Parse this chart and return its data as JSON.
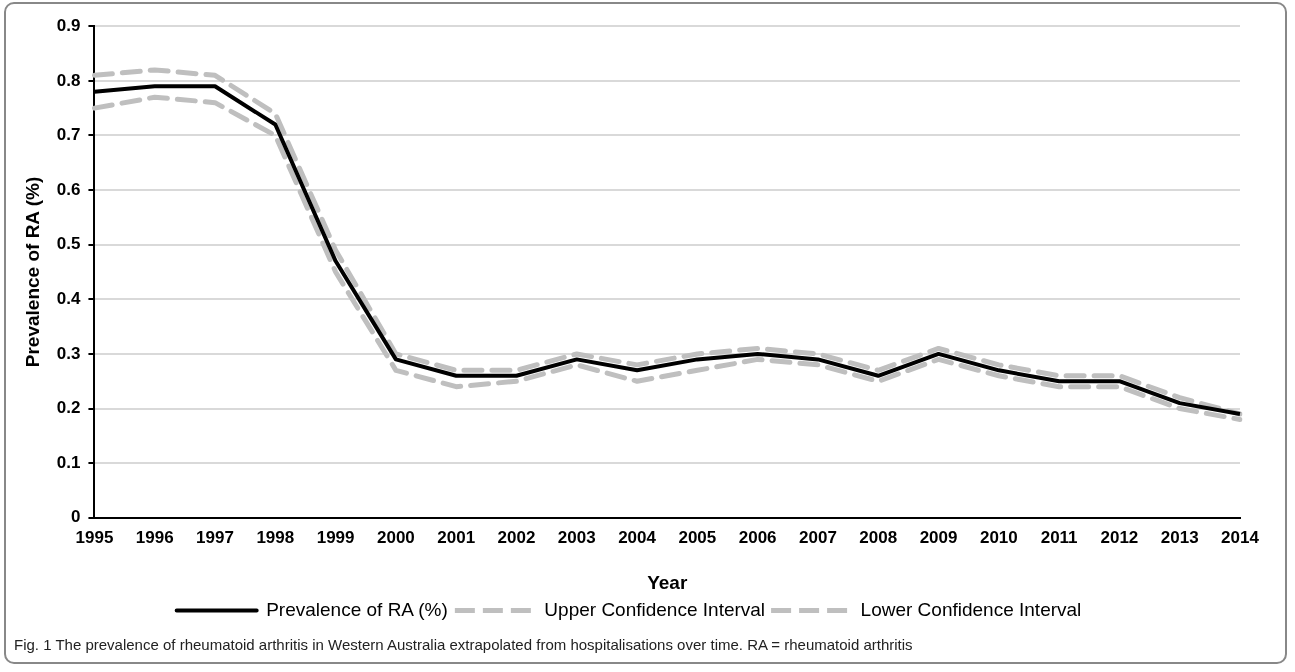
{
  "chart_data": {
    "type": "line",
    "xlabel": "Year",
    "ylabel": "Prevalence of RA (%)",
    "categories": [
      "1995",
      "1996",
      "1997",
      "1998",
      "1999",
      "2000",
      "2001",
      "2002",
      "2003",
      "2004",
      "2005",
      "2006",
      "2007",
      "2008",
      "2009",
      "2010",
      "2011",
      "2012",
      "2013",
      "2014"
    ],
    "series": [
      {
        "name": "Prevalence of RA (%)",
        "color": "#000000",
        "line_style": "solid",
        "values": [
          0.78,
          0.79,
          0.79,
          0.72,
          0.47,
          0.29,
          0.26,
          0.26,
          0.29,
          0.27,
          0.29,
          0.3,
          0.29,
          0.26,
          0.3,
          0.27,
          0.25,
          0.25,
          0.21,
          0.19
        ]
      },
      {
        "name": "Upper Confidence Interval",
        "color": "#bfbfbf",
        "line_style": "dashed",
        "values": [
          0.81,
          0.82,
          0.81,
          0.74,
          0.49,
          0.3,
          0.27,
          0.27,
          0.3,
          0.28,
          0.3,
          0.31,
          0.3,
          0.27,
          0.31,
          0.28,
          0.26,
          0.26,
          0.22,
          0.19
        ]
      },
      {
        "name": "Lower Confidence Interval",
        "color": "#bfbfbf",
        "line_style": "dashed",
        "values": [
          0.75,
          0.77,
          0.76,
          0.7,
          0.45,
          0.27,
          0.24,
          0.25,
          0.28,
          0.25,
          0.27,
          0.29,
          0.28,
          0.25,
          0.29,
          0.26,
          0.24,
          0.24,
          0.2,
          0.18
        ]
      }
    ],
    "ylim": [
      0,
      0.9
    ],
    "yticks": [
      0,
      0.1,
      0.2,
      0.3,
      0.4,
      0.5,
      0.6,
      0.7,
      0.8,
      0.9
    ],
    "grid": "y",
    "legend": "bottom",
    "marker": "none",
    "annotations": [
      "Fig. 1  The prevalence of rheumatoid arthritis in Western Australia extrapolated from hospitalisations over time. RA = rheumatoid arthritis"
    ]
  }
}
